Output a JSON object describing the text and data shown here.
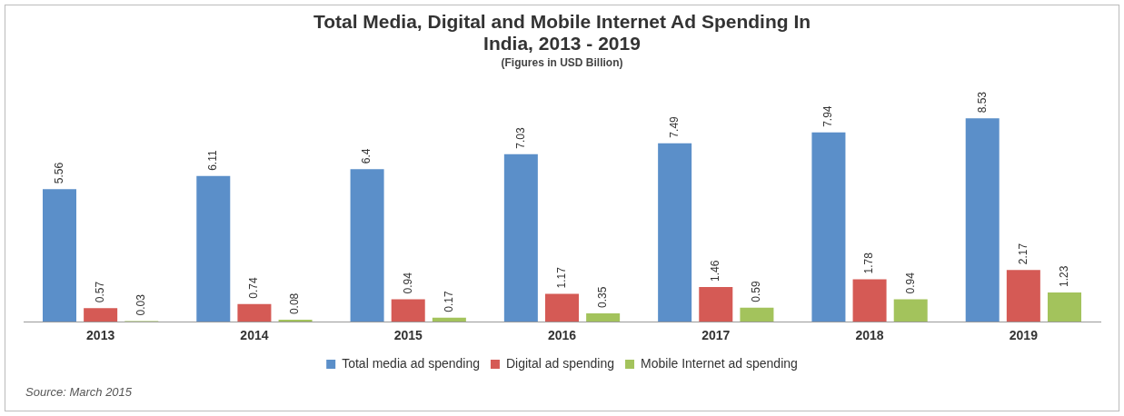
{
  "chart_data": {
    "type": "bar",
    "title": "Total Media, Digital and Mobile Internet Ad Spending In India, 2013 - 2019",
    "subtitle": "(Figures in USD Billion)",
    "categories": [
      "2013",
      "2014",
      "2015",
      "2016",
      "2017",
      "2018",
      "2019"
    ],
    "series": [
      {
        "name": "Total media ad spending",
        "color": "#5b8fc9",
        "values": [
          5.56,
          6.11,
          6.4,
          7.03,
          7.49,
          7.94,
          8.53
        ]
      },
      {
        "name": "Digital ad spending",
        "color": "#d55a55",
        "values": [
          0.57,
          0.74,
          0.94,
          1.17,
          1.46,
          1.78,
          2.17
        ]
      },
      {
        "name": "Mobile Internet ad spending",
        "color": "#a3c35c",
        "values": [
          0.03,
          0.08,
          0.17,
          0.35,
          0.59,
          0.94,
          1.23
        ]
      }
    ],
    "data_labels": true,
    "legend": "bottom",
    "grid": false,
    "annotations": [
      "Source: March 2015"
    ]
  }
}
